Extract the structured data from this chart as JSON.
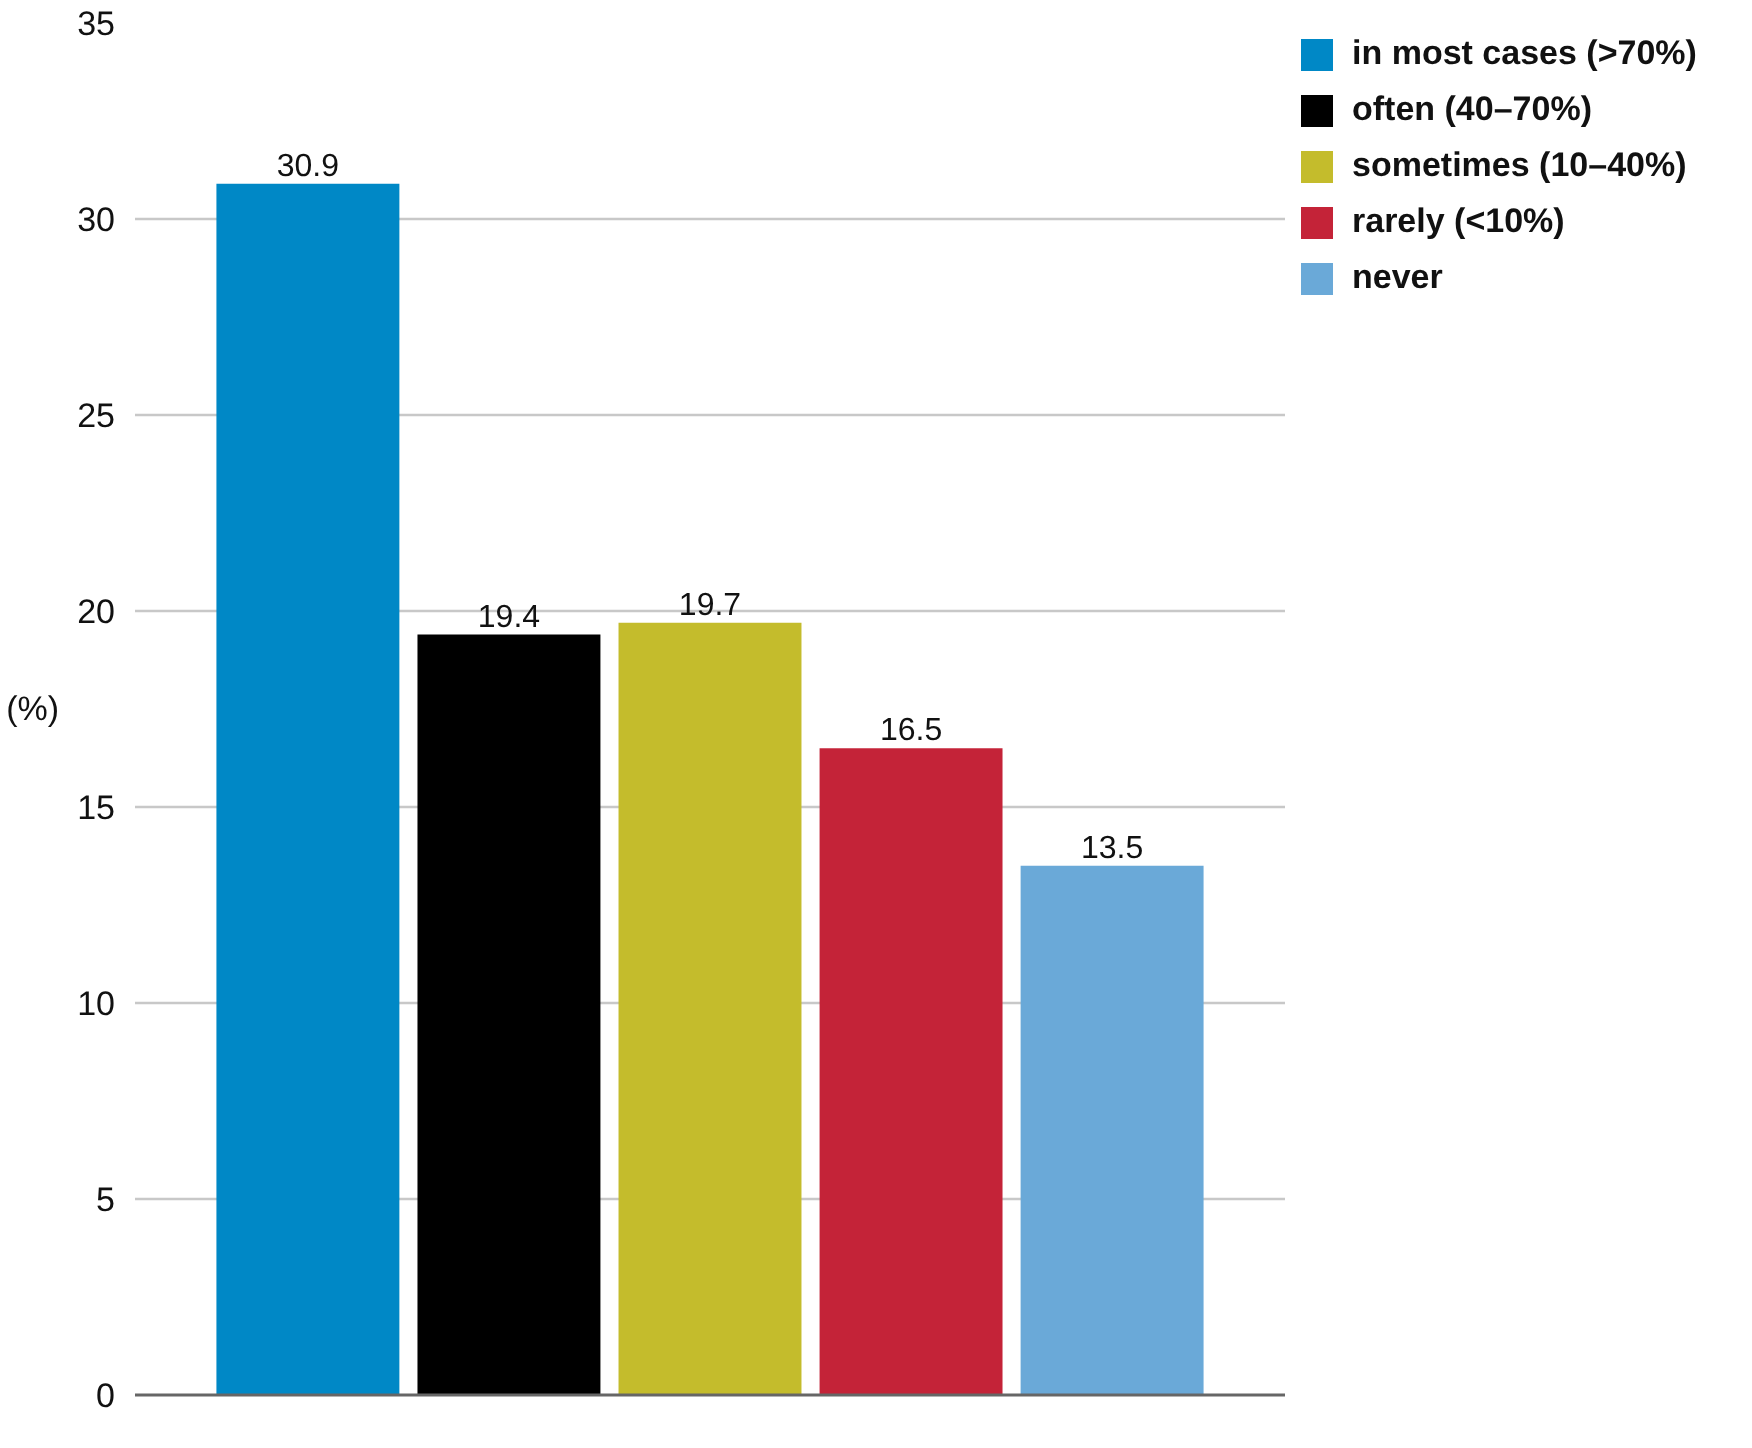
{
  "chart_data": {
    "type": "bar",
    "categories": [
      null,
      null,
      null,
      null,
      null
    ],
    "series": [
      {
        "name": "in most cases (>70%)",
        "color": "#0088c6",
        "values": [
          30.9,
          null,
          null,
          null,
          null
        ]
      },
      {
        "name": "often (40–70%)",
        "color": "#000000",
        "values": [
          null,
          19.4,
          null,
          null,
          null
        ]
      },
      {
        "name": "sometimes (10–40%)",
        "color": "#c4bc2c",
        "values": [
          null,
          null,
          19.7,
          null,
          null
        ]
      },
      {
        "name": "rarely (<10%)",
        "color": "#c42338",
        "values": [
          null,
          null,
          null,
          16.5,
          null
        ]
      },
      {
        "name": "never",
        "color": "#6aa9d8",
        "values": [
          null,
          null,
          null,
          null,
          13.5
        ]
      }
    ],
    "ylabel": "(%)",
    "ylim": [
      0,
      35
    ],
    "yticks": [
      0,
      5,
      10,
      15,
      20,
      25,
      30,
      35
    ],
    "grid": "y",
    "legend": "top right",
    "tick_labels": "y",
    "data_labels": true
  }
}
